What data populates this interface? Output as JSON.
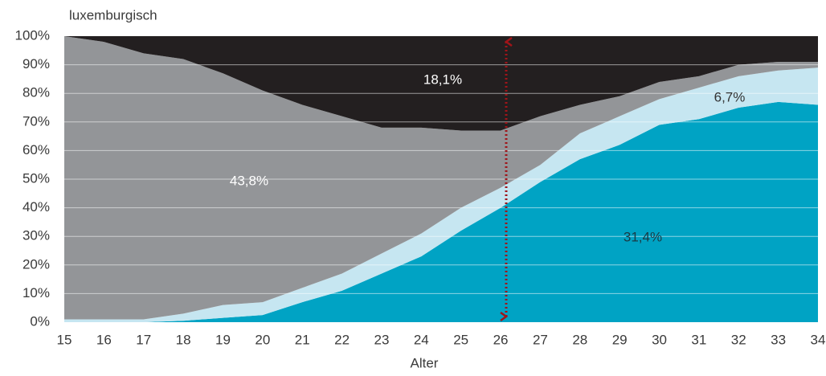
{
  "chart_data": {
    "type": "stacked_area",
    "ylabel": "luxemburgisch",
    "xlabel": "Alter",
    "x": [
      15,
      16,
      17,
      18,
      19,
      20,
      21,
      22,
      23,
      24,
      25,
      26,
      27,
      28,
      29,
      30,
      31,
      32,
      33,
      34
    ],
    "xlim": [
      15,
      34
    ],
    "xticks": [
      15,
      16,
      17,
      18,
      19,
      20,
      21,
      22,
      23,
      24,
      25,
      26,
      27,
      28,
      29,
      30,
      31,
      32,
      33,
      34
    ],
    "ylim": [
      0,
      100
    ],
    "yticks": [
      {
        "value": 0,
        "label": "0%"
      },
      {
        "value": 10,
        "label": "10%"
      },
      {
        "value": 20,
        "label": "20%"
      },
      {
        "value": 30,
        "label": "30%"
      },
      {
        "value": 40,
        "label": "40%"
      },
      {
        "value": 50,
        "label": "50%"
      },
      {
        "value": 60,
        "label": "60%"
      },
      {
        "value": 70,
        "label": "70%"
      },
      {
        "value": 80,
        "label": "80%"
      },
      {
        "value": 90,
        "label": "90%"
      },
      {
        "value": 100,
        "label": "100%"
      }
    ],
    "grid": true,
    "series": [
      {
        "color": "#00a3c4",
        "values": [
          0,
          0,
          0,
          0.5,
          1.5,
          2.5,
          7,
          11,
          17,
          23,
          32,
          40,
          49,
          57,
          62,
          69,
          71,
          75,
          77,
          76
        ]
      },
      {
        "color": "#c6e6f1",
        "values": [
          1,
          1,
          1,
          2.5,
          4.5,
          4.5,
          5,
          6,
          7,
          8,
          8,
          7,
          6,
          9,
          10,
          9,
          11,
          11,
          11,
          13
        ]
      },
      {
        "color": "#939598",
        "values": [
          99,
          97,
          93,
          89,
          81,
          74,
          64,
          55,
          44,
          37,
          27,
          20,
          17,
          10,
          7,
          6,
          4,
          4,
          3,
          2
        ]
      },
      {
        "color": "#231f20",
        "values": [
          0,
          2,
          6,
          8,
          13,
          19,
          24,
          28,
          32,
          32,
          33,
          33,
          28,
          24,
          21,
          16,
          14,
          10,
          9,
          9
        ]
      }
    ],
    "annotations": [
      "43,8%",
      "18,1%",
      "6,7%",
      "31,4%"
    ]
  }
}
